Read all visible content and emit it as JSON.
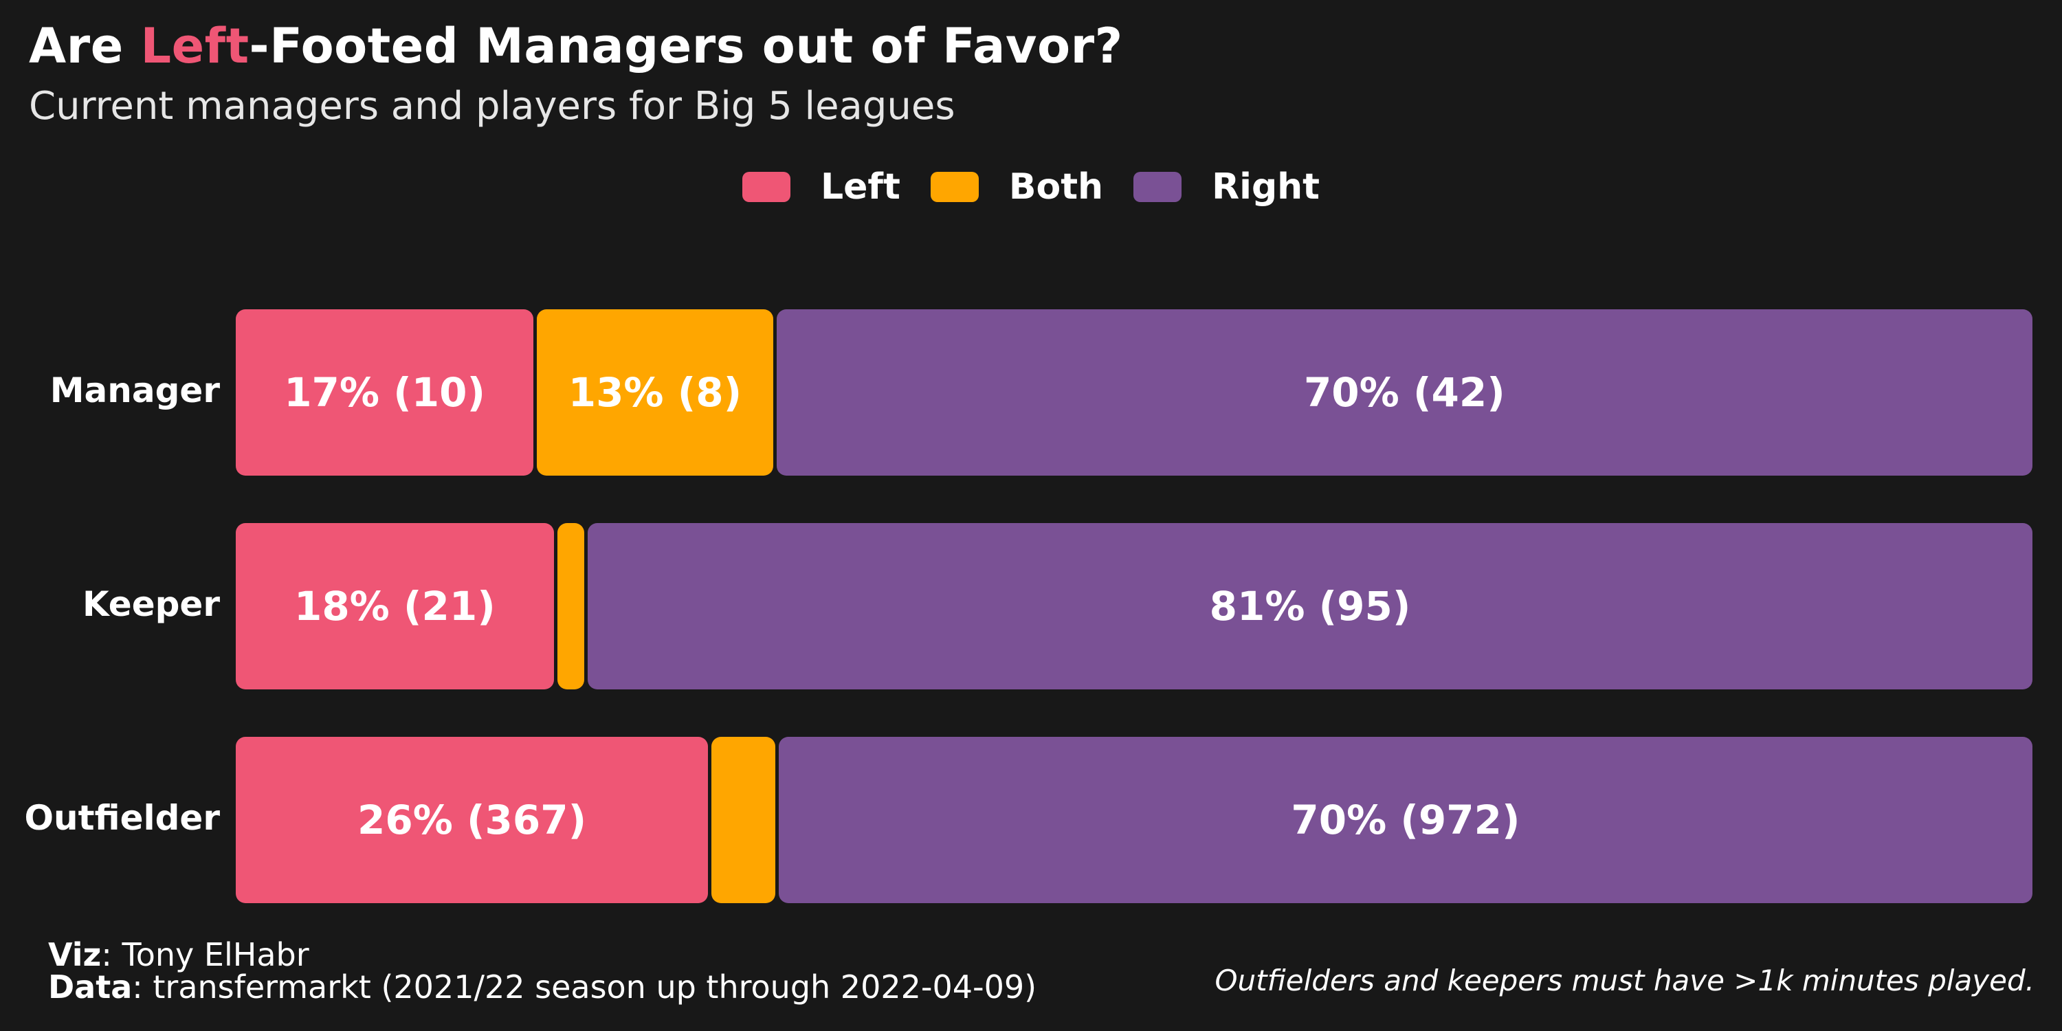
{
  "title": {
    "prefix": "Are ",
    "highlight": "Left",
    "suffix": "-Footed Managers out of Favor?"
  },
  "subtitle": "Current managers and players for Big 5 leagues",
  "colors": {
    "Left": "#ef5675",
    "Both": "#ffa600",
    "Right": "#7a5195"
  },
  "legend": [
    "Left",
    "Both",
    "Right"
  ],
  "chart_data": {
    "type": "bar",
    "orientation": "horizontal",
    "stacked": true,
    "normalized": true,
    "categories": [
      "Manager",
      "Keeper",
      "Outfielder"
    ],
    "series": [
      {
        "name": "Left",
        "values": [
          10,
          21,
          367
        ],
        "labels": [
          "17% (10)",
          "18% (21)",
          "26% (367)"
        ]
      },
      {
        "name": "Both",
        "values": [
          8,
          2,
          52
        ],
        "labels": [
          "13% (8)",
          "",
          ""
        ]
      },
      {
        "name": "Right",
        "values": [
          42,
          95,
          972
        ],
        "labels": [
          "70% (42)",
          "81% (95)",
          "70% (972)"
        ]
      }
    ],
    "legend_position": "top-center",
    "grid": false
  },
  "caption": {
    "viz_label": "Viz",
    "viz_value": ": Tony ElHabr",
    "data_label": "Data",
    "data_value": ": transfermarkt (2021/22 season up through 2022-04-09)",
    "note": "Outfielders and keepers must have >1k minutes played."
  }
}
